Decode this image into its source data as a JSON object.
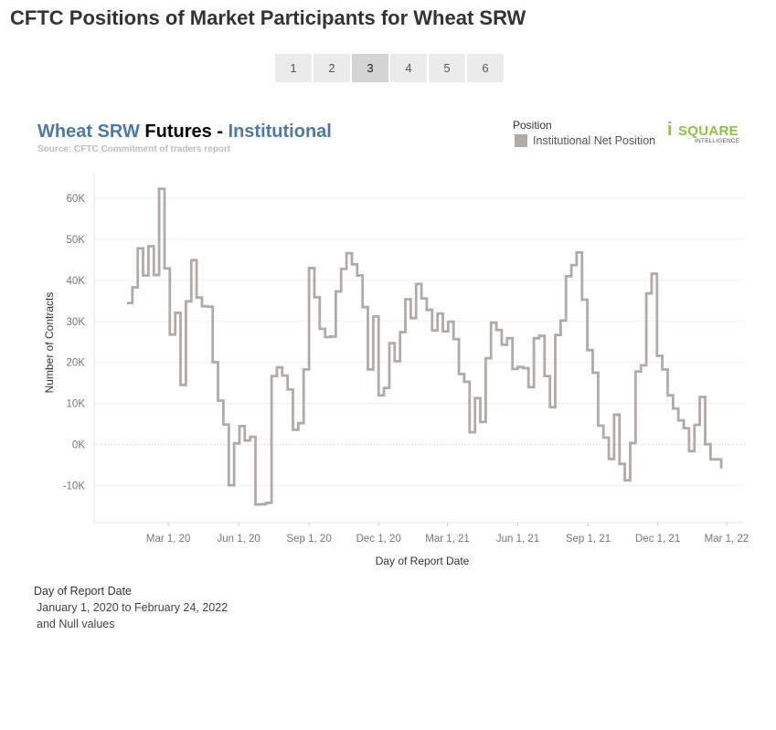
{
  "page": {
    "title": "CFTC Positions of Market Participants for Wheat SRW"
  },
  "pager": {
    "pages": [
      "1",
      "2",
      "3",
      "4",
      "5",
      "6"
    ],
    "active": "3"
  },
  "chart_header": {
    "title_part1": "Wheat SRW",
    "title_part2": " Futures - ",
    "title_part3": "Institutional",
    "source": "Source: CFTC Commitment of traders report"
  },
  "legend": {
    "title": "Position",
    "item": "Institutional Net Position"
  },
  "logo": {
    "mark": "i",
    "word": "SQUARE",
    "sub": "INTELLIGENCE"
  },
  "filter": {
    "title": "Day of Report Date",
    "line1": "January 1, 2020 to February 24, 2022",
    "line2": "and Null values"
  },
  "colors": {
    "title_blue": "#4e79a7",
    "title_black": "#000000",
    "line": "#b2aaa6",
    "grid": "#f0f0f0",
    "zero_line": "#cfcfcf",
    "logo_green": "#8cc63f"
  },
  "chart_data": {
    "type": "line",
    "step": true,
    "xlabel": "Day of Report Date",
    "ylabel": "Number of Contracts",
    "x_range": [
      "2019-11-25",
      "2022-03-25"
    ],
    "y_range": [
      -19000,
      66000
    ],
    "y_ticks": [
      -10000,
      0,
      10000,
      20000,
      30000,
      40000,
      50000,
      60000
    ],
    "y_tick_labels": [
      "-10K",
      "0K",
      "10K",
      "20K",
      "30K",
      "40K",
      "50K",
      "60K"
    ],
    "x_ticks": [
      "2020-03-01",
      "2020-06-01",
      "2020-09-01",
      "2020-12-01",
      "2021-03-01",
      "2021-06-01",
      "2021-09-01",
      "2021-12-01",
      "2022-03-01"
    ],
    "x_tick_labels": [
      "Mar 1, 20",
      "Jun 1, 20",
      "Sep 1, 20",
      "Dec 1, 20",
      "Mar 1, 21",
      "Jun 1, 21",
      "Sep 1, 21",
      "Dec 1, 21",
      "Mar 1, 22"
    ],
    "grid": true,
    "legend_position": "top-right",
    "series": [
      {
        "name": "Institutional Net Position",
        "points": [
          [
            "2020-01-07",
            34500
          ],
          [
            "2020-01-14",
            38300
          ],
          [
            "2020-01-21",
            47800
          ],
          [
            "2020-01-28",
            41200
          ],
          [
            "2020-02-04",
            48300
          ],
          [
            "2020-02-11",
            41300
          ],
          [
            "2020-02-18",
            62300
          ],
          [
            "2020-02-25",
            42900
          ],
          [
            "2020-03-03",
            26800
          ],
          [
            "2020-03-10",
            32100
          ],
          [
            "2020-03-17",
            14500
          ],
          [
            "2020-03-24",
            34900
          ],
          [
            "2020-03-31",
            44900
          ],
          [
            "2020-04-07",
            35800
          ],
          [
            "2020-04-14",
            33700
          ],
          [
            "2020-04-21",
            33600
          ],
          [
            "2020-04-28",
            20100
          ],
          [
            "2020-05-05",
            10700
          ],
          [
            "2020-05-12",
            4900
          ],
          [
            "2020-05-19",
            -9900
          ],
          [
            "2020-05-26",
            300
          ],
          [
            "2020-06-02",
            4500
          ],
          [
            "2020-06-09",
            1000
          ],
          [
            "2020-06-16",
            1900
          ],
          [
            "2020-06-23",
            -14600
          ],
          [
            "2020-06-30",
            -14500
          ],
          [
            "2020-07-07",
            -14200
          ],
          [
            "2020-07-14",
            16700
          ],
          [
            "2020-07-21",
            18800
          ],
          [
            "2020-07-28",
            16800
          ],
          [
            "2020-08-04",
            13400
          ],
          [
            "2020-08-11",
            3600
          ],
          [
            "2020-08-18",
            5200
          ],
          [
            "2020-08-25",
            18300
          ],
          [
            "2020-09-01",
            43000
          ],
          [
            "2020-09-08",
            35900
          ],
          [
            "2020-09-15",
            28200
          ],
          [
            "2020-09-22",
            26200
          ],
          [
            "2020-09-29",
            26300
          ],
          [
            "2020-10-06",
            37300
          ],
          [
            "2020-10-13",
            42800
          ],
          [
            "2020-10-20",
            46600
          ],
          [
            "2020-10-27",
            43900
          ],
          [
            "2020-11-03",
            41200
          ],
          [
            "2020-11-10",
            33500
          ],
          [
            "2020-11-17",
            18300
          ],
          [
            "2020-11-24",
            31200
          ],
          [
            "2020-12-01",
            12000
          ],
          [
            "2020-12-08",
            13800
          ],
          [
            "2020-12-15",
            24700
          ],
          [
            "2020-12-22",
            20300
          ],
          [
            "2020-12-29",
            27400
          ],
          [
            "2021-01-05",
            35400
          ],
          [
            "2021-01-12",
            30800
          ],
          [
            "2021-01-19",
            39100
          ],
          [
            "2021-01-26",
            35600
          ],
          [
            "2021-02-02",
            32800
          ],
          [
            "2021-02-09",
            27800
          ],
          [
            "2021-02-16",
            31900
          ],
          [
            "2021-02-23",
            27600
          ],
          [
            "2021-03-02",
            29900
          ],
          [
            "2021-03-09",
            25700
          ],
          [
            "2021-03-16",
            17200
          ],
          [
            "2021-03-23",
            15300
          ],
          [
            "2021-03-30",
            3000
          ],
          [
            "2021-04-06",
            11300
          ],
          [
            "2021-04-13",
            5500
          ],
          [
            "2021-04-20",
            21000
          ],
          [
            "2021-04-27",
            29700
          ],
          [
            "2021-05-04",
            27900
          ],
          [
            "2021-05-11",
            24300
          ],
          [
            "2021-05-18",
            25900
          ],
          [
            "2021-05-25",
            18400
          ],
          [
            "2021-06-01",
            18900
          ],
          [
            "2021-06-08",
            18600
          ],
          [
            "2021-06-15",
            14000
          ],
          [
            "2021-06-22",
            25900
          ],
          [
            "2021-06-29",
            26500
          ],
          [
            "2021-07-06",
            16700
          ],
          [
            "2021-07-13",
            9100
          ],
          [
            "2021-07-20",
            26700
          ],
          [
            "2021-07-27",
            30200
          ],
          [
            "2021-08-03",
            41000
          ],
          [
            "2021-08-10",
            43700
          ],
          [
            "2021-08-17",
            46800
          ],
          [
            "2021-08-24",
            35300
          ],
          [
            "2021-08-31",
            23000
          ],
          [
            "2021-09-07",
            17500
          ],
          [
            "2021-09-14",
            4600
          ],
          [
            "2021-09-21",
            1700
          ],
          [
            "2021-09-28",
            -3500
          ],
          [
            "2021-10-05",
            7300
          ],
          [
            "2021-10-12",
            -4700
          ],
          [
            "2021-10-19",
            -8700
          ],
          [
            "2021-10-26",
            400
          ],
          [
            "2021-11-02",
            17800
          ],
          [
            "2021-11-09",
            19300
          ],
          [
            "2021-11-16",
            36800
          ],
          [
            "2021-11-23",
            41600
          ],
          [
            "2021-11-30",
            21600
          ],
          [
            "2021-12-07",
            18300
          ],
          [
            "2021-12-14",
            12000
          ],
          [
            "2021-12-21",
            8800
          ],
          [
            "2021-12-28",
            5900
          ],
          [
            "2022-01-04",
            4000
          ],
          [
            "2022-01-11",
            -1600
          ],
          [
            "2022-01-18",
            4800
          ],
          [
            "2022-01-25",
            11600
          ],
          [
            "2022-02-01",
            100
          ],
          [
            "2022-02-08",
            -3600
          ],
          [
            "2022-02-15",
            -3600
          ],
          [
            "2022-02-22",
            -5800
          ]
        ]
      }
    ]
  }
}
